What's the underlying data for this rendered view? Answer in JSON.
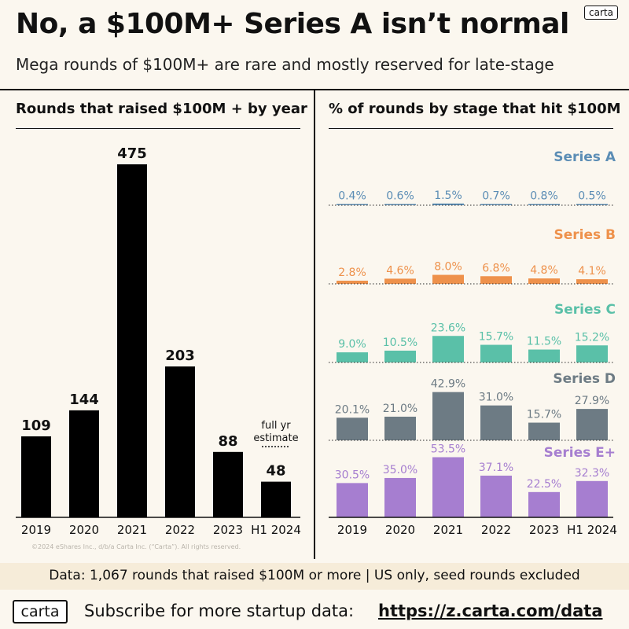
{
  "header": {
    "title": "No, a $100M+ Series A isn’t normal",
    "subtitle": "Mega rounds of $100M+ are rare and mostly reserved for late-stage",
    "brand_badge": "carta"
  },
  "left_panel": {
    "title": "Rounds that raised $100M + by year",
    "note_line1": "full yr",
    "note_line2": "estimate"
  },
  "right_panel": {
    "title": "% of rounds by stage that hit $100M"
  },
  "copyright": "©2024 eShares Inc., d/b/a Carta Inc. (“Carta”). All rights reserved.",
  "data_note": "Data: 1,067 rounds that raised $100M or more | US only, seed rounds excluded",
  "footer": {
    "logo": "carta",
    "text": "Subscribe for more startup data:",
    "link": "https://z.carta.com/data"
  },
  "chart_data": [
    {
      "type": "bar",
      "title": "Rounds that raised $100M + by year",
      "categories": [
        "2019",
        "2020",
        "2021",
        "2022",
        "2023",
        "H1 2024"
      ],
      "values": [
        109,
        144,
        475,
        203,
        88,
        48
      ],
      "color": "#000000"
    },
    {
      "type": "bar",
      "title": "% of rounds by stage that hit $100M",
      "categories": [
        "2019",
        "2020",
        "2021",
        "2022",
        "2023",
        "H1 2024"
      ],
      "unit": "%",
      "series": [
        {
          "name": "Series A",
          "color": "#5b8db5",
          "values": [
            0.4,
            0.6,
            1.5,
            0.7,
            0.8,
            0.5
          ],
          "labels": [
            "0.4%",
            "0.6%",
            "1.5%",
            "0.7%",
            "0.8%",
            "0.5%"
          ]
        },
        {
          "name": "Series B",
          "color": "#ee914b",
          "values": [
            2.8,
            4.6,
            8.0,
            6.8,
            4.8,
            4.1
          ],
          "labels": [
            "2.8%",
            "4.6%",
            "8.0%",
            "6.8%",
            "4.8%",
            "4.1%"
          ]
        },
        {
          "name": "Series C",
          "color": "#5ac0a8",
          "values": [
            9.0,
            10.5,
            23.6,
            15.7,
            11.5,
            15.2
          ],
          "labels": [
            "9.0%",
            "10.5%",
            "23.6%",
            "15.7%",
            "11.5%",
            "15.2%"
          ]
        },
        {
          "name": "Series D",
          "color": "#6d7b84",
          "values": [
            20.1,
            21.0,
            42.9,
            31.0,
            15.7,
            27.9
          ],
          "labels": [
            "20.1%",
            "21.0%",
            "42.9%",
            "31.0%",
            "15.7%",
            "27.9%"
          ]
        },
        {
          "name": "Series E+",
          "color": "#a67ed0",
          "values": [
            30.5,
            35.0,
            53.5,
            37.1,
            22.5,
            32.3
          ],
          "labels": [
            "30.5%",
            "35.0%",
            "53.5%",
            "37.1%",
            "22.5%",
            "32.3%"
          ]
        }
      ]
    }
  ]
}
